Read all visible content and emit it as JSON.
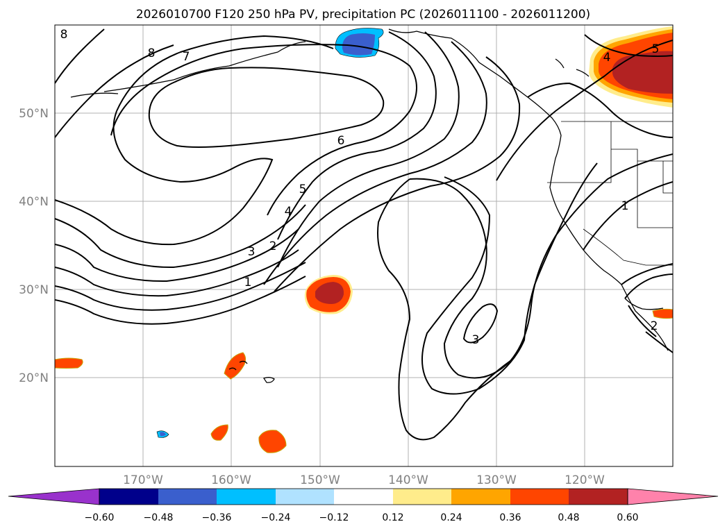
{
  "title": "2026010700 F120 250 hPa PV, precipitation PC (2026011100 - 2026011200)",
  "map": {
    "lat_labels": [
      "50°N",
      "40°N",
      "30°N",
      "20°N"
    ],
    "lon_labels": [
      "170°W",
      "160°W",
      "150°W",
      "140°W",
      "130°W",
      "120°W"
    ],
    "pv_contour_labels": [
      "8",
      "7",
      "6",
      "5",
      "4",
      "3",
      "2",
      "1",
      "3",
      "4",
      "5",
      "1",
      "2"
    ]
  },
  "colorbar": {
    "colors": [
      "#9932CC",
      "#00008B",
      "#3A5FCD",
      "#00BFFF",
      "#B0E2FF",
      "#FFFFFF",
      "#FFEC8B",
      "#FFA500",
      "#FF4500",
      "#B22222",
      "#FF82AB"
    ],
    "tick_labels": [
      "−0.60",
      "−0.48",
      "−0.36",
      "−0.24",
      "−0.12",
      "0.12",
      "0.24",
      "0.36",
      "0.48",
      "0.60"
    ]
  }
}
